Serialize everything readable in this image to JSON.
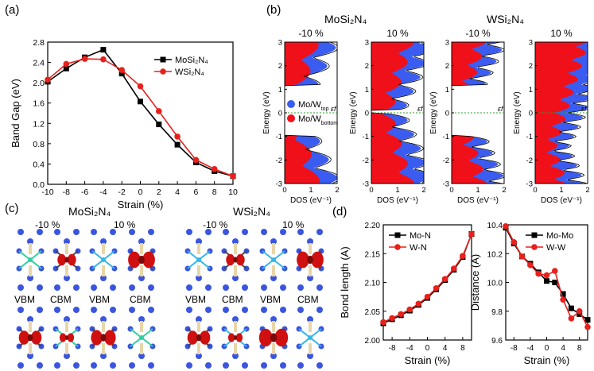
{
  "panel_labels": {
    "a": "(a)",
    "b": "(b)",
    "c": "(c)",
    "d": "(d)"
  },
  "panel_b": {
    "title_mo": "MoSi₂N₄",
    "title_w": "WSi₂N₄",
    "sub_labels": [
      "-10 %",
      "10 %",
      "-10 %",
      "10 %"
    ],
    "ylabel": "Energy (eV)",
    "xlabel": "DOS (eV⁻¹)",
    "legend_top": "Mo/W",
    "legend_top_sub": "top",
    "legend_bottom": "Mo/W",
    "legend_bottom_sub": "bottom",
    "fermi_label": "εf",
    "yticks": [
      "3",
      "2",
      "1",
      "0",
      "-1",
      "-2",
      "-3"
    ],
    "xticks": [
      "0",
      "1",
      "2"
    ],
    "colors": {
      "top": "#3a5cf0",
      "bottom": "#f0101a",
      "fermi": "#2ca02c"
    }
  },
  "panel_c": {
    "title_mo": "MoSi₂N₄",
    "title_w": "WSi₂N₄",
    "strain_labels": [
      "-10 %",
      "10 %",
      "-10 %",
      "10 %"
    ],
    "band_labels": [
      "VBM",
      "CBM",
      "VBM",
      "CBM",
      "VBM",
      "CBM",
      "VBM",
      "CBM"
    ]
  },
  "chart_data": [
    {
      "type": "line",
      "title": "",
      "xlabel": "Strain (%)",
      "ylabel": "Band Gap (eV)",
      "xlim": [
        -10,
        10
      ],
      "ylim": [
        0.0,
        2.8
      ],
      "xticks": [
        "-10",
        "-8",
        "-6",
        "-4",
        "-2",
        "0",
        "2",
        "4",
        "6",
        "8",
        "10"
      ],
      "yticks": [
        "0.0",
        "0.4",
        "0.8",
        "1.2",
        "1.6",
        "2.0",
        "2.4",
        "2.8"
      ],
      "legend": "top-right",
      "x": [
        -10,
        -8,
        -6,
        -4,
        -2,
        0,
        2,
        4,
        6,
        8,
        10
      ],
      "series": [
        {
          "name": "MoSi₂N₄",
          "marker": "square",
          "color": "#000000",
          "values": [
            2.02,
            2.28,
            2.5,
            2.65,
            2.18,
            1.63,
            1.18,
            0.78,
            0.43,
            0.26,
            0.16
          ]
        },
        {
          "name": "WSi₂N₄",
          "marker": "circle",
          "color": "#e8201c",
          "values": [
            2.06,
            2.37,
            2.47,
            2.46,
            2.25,
            1.93,
            1.44,
            0.94,
            0.48,
            0.3,
            0.16
          ]
        }
      ]
    },
    {
      "type": "line",
      "title": "",
      "xlabel": "Strain (%)",
      "ylabel": "Bond length (A)",
      "xlim": [
        -10,
        10
      ],
      "ylim": [
        2.0,
        2.2
      ],
      "xticks": [
        "-8",
        "-4",
        "0",
        "4",
        "8"
      ],
      "yticks": [
        "2.00",
        "2.05",
        "2.10",
        "2.15",
        "2.20"
      ],
      "legend": "top-left",
      "x": [
        -10,
        -8,
        -6,
        -4,
        -2,
        0,
        2,
        4,
        6,
        8,
        10
      ],
      "series": [
        {
          "name": "Mo-N",
          "marker": "square",
          "color": "#000000",
          "values": [
            2.029,
            2.036,
            2.043,
            2.051,
            2.061,
            2.073,
            2.088,
            2.104,
            2.122,
            2.144,
            2.184
          ]
        },
        {
          "name": "W-N",
          "marker": "circle",
          "color": "#e8201c",
          "values": [
            2.031,
            2.038,
            2.045,
            2.053,
            2.063,
            2.075,
            2.09,
            2.106,
            2.124,
            2.146,
            2.184
          ]
        }
      ]
    },
    {
      "type": "line",
      "title": "",
      "xlabel": "Strain (%)",
      "ylabel": "Distance (A)",
      "xlim": [
        -10,
        10
      ],
      "ylim": [
        9.6,
        10.4
      ],
      "xticks": [
        "-8",
        "-4",
        "0",
        "4",
        "8"
      ],
      "yticks": [
        "9.6",
        "9.8",
        "10.0",
        "10.2",
        "10.4"
      ],
      "legend": "top-right",
      "x": [
        -10,
        -8,
        -6,
        -4,
        -2,
        0,
        2,
        4,
        6,
        8,
        10
      ],
      "series": [
        {
          "name": "Mo-Mo",
          "marker": "square",
          "color": "#000000",
          "values": [
            10.38,
            10.27,
            10.18,
            10.13,
            10.07,
            10.01,
            10.0,
            9.92,
            9.82,
            9.78,
            9.74
          ]
        },
        {
          "name": "W-W",
          "marker": "circle",
          "color": "#e8201c",
          "values": [
            10.39,
            10.28,
            10.18,
            10.12,
            10.06,
            10.05,
            10.08,
            9.88,
            9.75,
            9.8,
            9.69
          ]
        }
      ]
    }
  ]
}
